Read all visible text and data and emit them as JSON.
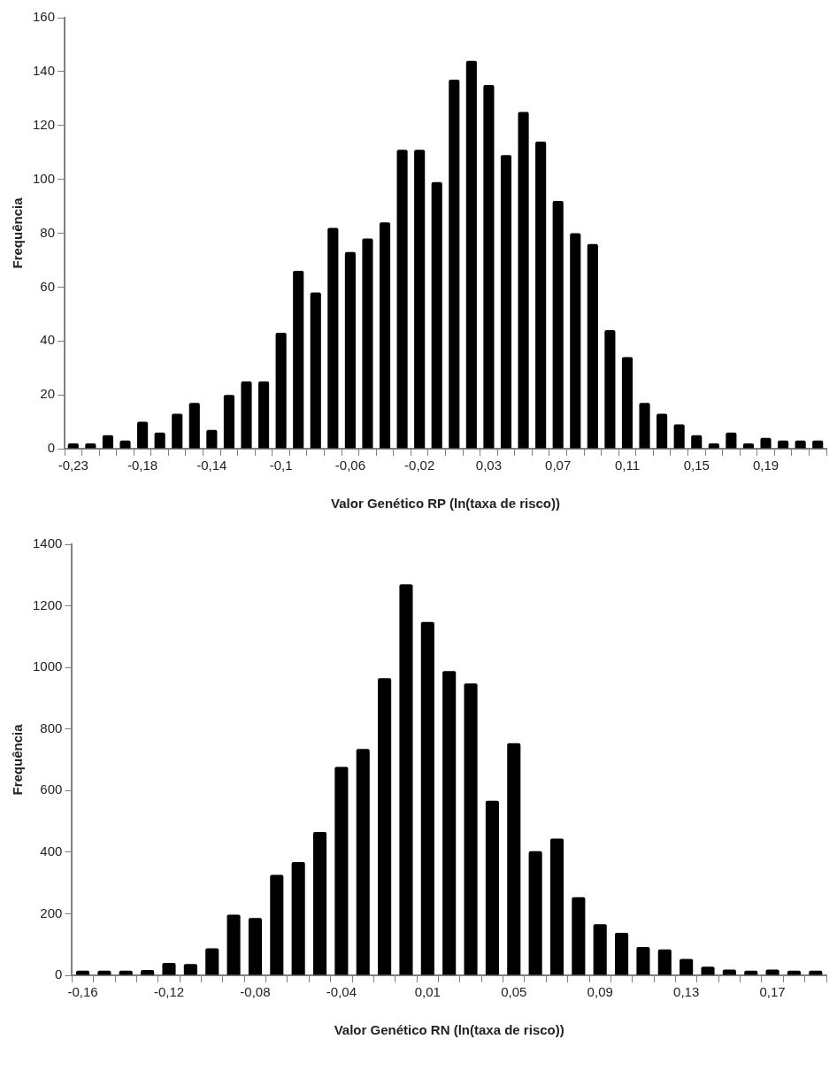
{
  "chart_data": [
    {
      "type": "bar",
      "xlabel": "Valor Genético RP (ln(taxa de risco))",
      "ylabel": "Frequência",
      "color": "#000000",
      "categories": [
        "-0,23",
        null,
        null,
        null,
        "-0,18",
        null,
        null,
        null,
        "-0,14",
        null,
        null,
        null,
        "-0,1",
        null,
        null,
        null,
        "-0,06",
        null,
        null,
        null,
        "-0,02",
        null,
        null,
        null,
        "0,03",
        null,
        null,
        null,
        "0,07",
        null,
        null,
        null,
        "0,11",
        null,
        null,
        null,
        "0,15",
        null,
        null,
        null,
        "0,19",
        null,
        null,
        null
      ],
      "values": [
        2,
        2,
        5,
        3,
        10,
        6,
        13,
        17,
        7,
        20,
        25,
        25,
        43,
        66,
        58,
        82,
        73,
        78,
        84,
        111,
        111,
        99,
        137,
        144,
        135,
        109,
        125,
        114,
        92,
        80,
        76,
        44,
        34,
        17,
        13,
        9,
        5,
        2,
        6,
        2,
        4,
        3,
        3,
        3
      ],
      "ylim": [
        0,
        160
      ],
      "yticks": [
        0,
        20,
        40,
        60,
        80,
        100,
        120,
        140,
        160
      ]
    },
    {
      "type": "bar",
      "xlabel": "Valor Genético RN (ln(taxa de risco))",
      "ylabel": "Frequência",
      "color": "#000000",
      "categories": [
        "-0,16",
        null,
        null,
        null,
        "-0,12",
        null,
        null,
        null,
        "-0,08",
        null,
        null,
        null,
        "-0,04",
        null,
        null,
        null,
        "0,01",
        null,
        null,
        null,
        "0,05",
        null,
        null,
        null,
        "0,09",
        null,
        null,
        null,
        "0,13",
        null,
        null,
        null,
        "0,17",
        null,
        null
      ],
      "values": [
        15,
        15,
        15,
        17,
        40,
        37,
        88,
        197,
        186,
        326,
        368,
        466,
        677,
        735,
        965,
        1270,
        1148,
        988,
        948,
        567,
        754,
        403,
        444,
        254,
        166,
        138,
        92,
        84,
        53,
        28,
        19,
        15,
        19,
        15,
        15
      ],
      "ylim": [
        0,
        1400
      ],
      "yticks": [
        0,
        200,
        400,
        600,
        800,
        1000,
        1200,
        1400
      ]
    }
  ]
}
